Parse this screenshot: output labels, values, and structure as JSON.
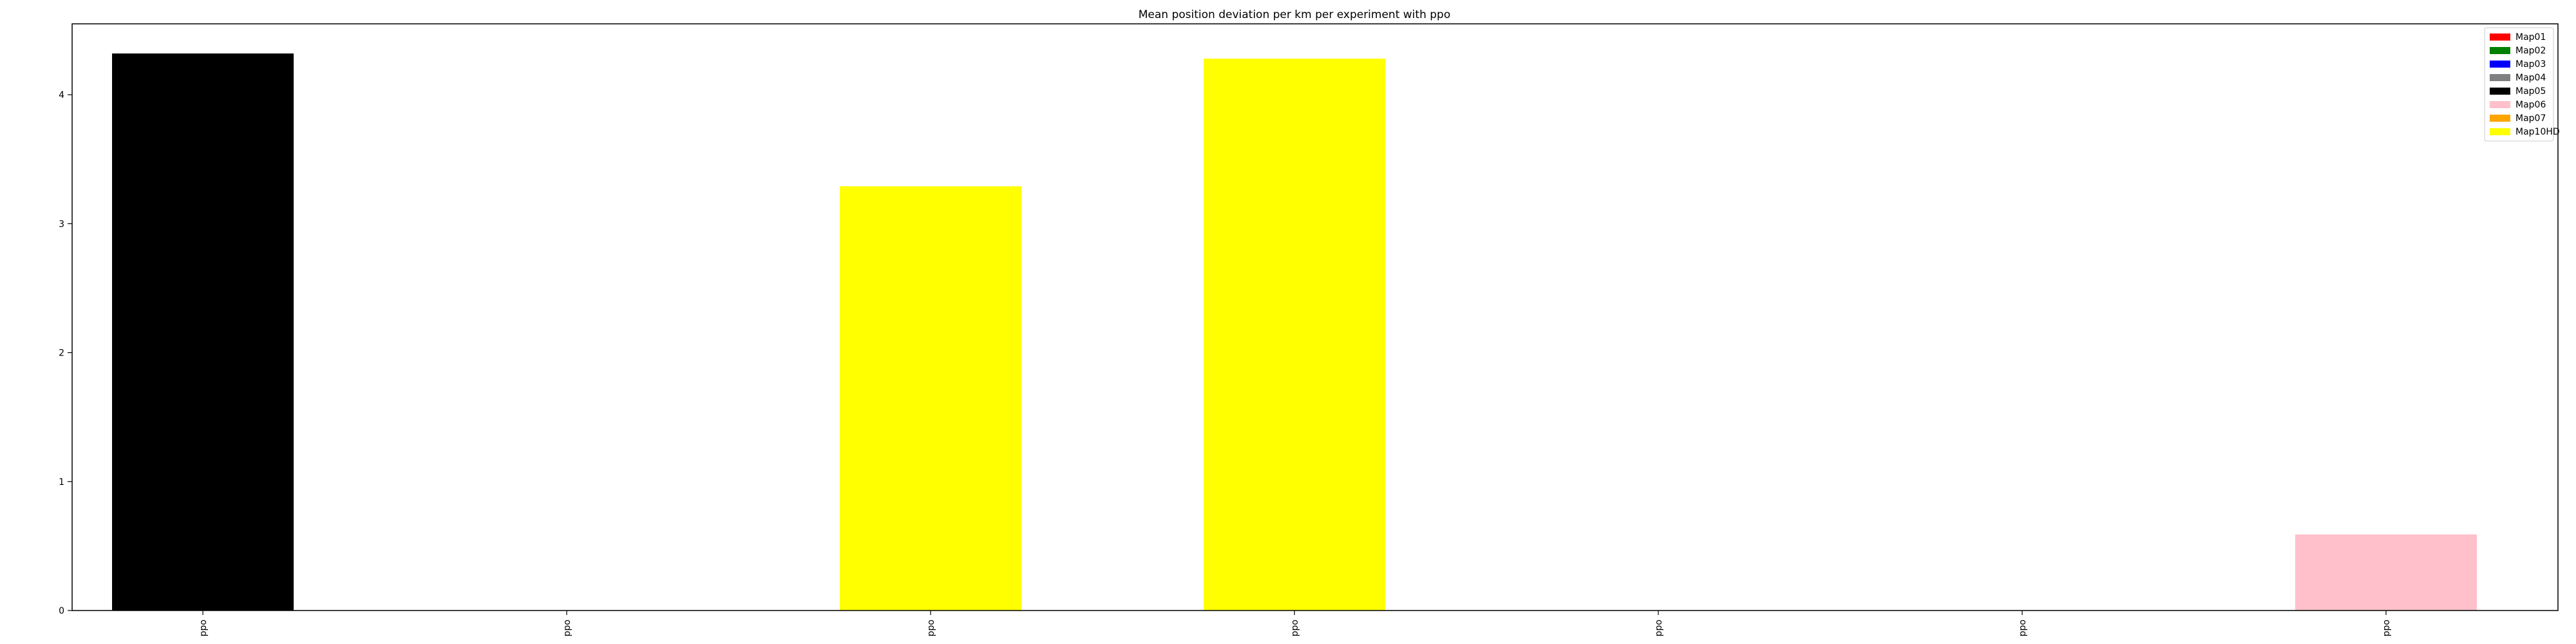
{
  "chart_data": {
    "type": "bar",
    "title": "Mean position deviation per km per experiment with ppo",
    "xlabel": "",
    "ylabel": "",
    "categories": [
      "ppo",
      "ppo",
      "ppo",
      "ppo",
      "ppo",
      "ppo",
      "ppo"
    ],
    "values": [
      4.32,
      0,
      3.29,
      4.28,
      0,
      0,
      0.59
    ],
    "bar_series": [
      "Map05",
      "Map01",
      "Map10HD",
      "Map10HD",
      "Map01",
      "Map01",
      "Map06"
    ],
    "ylim": [
      0,
      4.55
    ],
    "yticks": [
      0,
      1,
      2,
      3,
      4
    ],
    "grid": false,
    "legend_position": "top-right",
    "series": [
      {
        "name": "Map01",
        "color": "#ff0000"
      },
      {
        "name": "Map02",
        "color": "#008000"
      },
      {
        "name": "Map03",
        "color": "#0000ff"
      },
      {
        "name": "Map04",
        "color": "#808080"
      },
      {
        "name": "Map05",
        "color": "#000000"
      },
      {
        "name": "Map06",
        "color": "#ffc0cb"
      },
      {
        "name": "Map07",
        "color": "#ffa500"
      },
      {
        "name": "Map10HD",
        "color": "#ffff00"
      }
    ]
  }
}
